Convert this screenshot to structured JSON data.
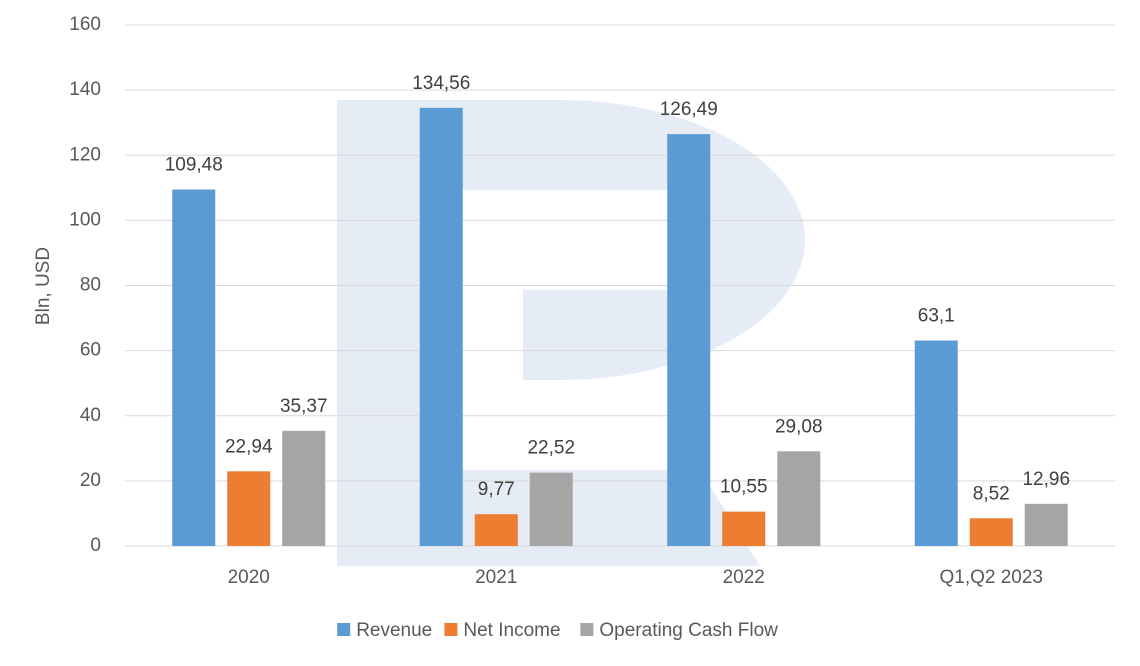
{
  "chart_data": {
    "type": "bar",
    "y_label": "Bln, USD",
    "categories": [
      "2020",
      "2021",
      "2022",
      "Q1,Q2 2023"
    ],
    "series": [
      {
        "name": "Revenue",
        "color": "#5b9bd5",
        "values": [
          109.48,
          134.56,
          126.49,
          63.1
        ],
        "value_labels": [
          "109,48",
          "134,56",
          "126,49",
          "63,1"
        ]
      },
      {
        "name": "Net Income",
        "color": "#ed7d31",
        "values": [
          22.94,
          9.77,
          10.55,
          8.52
        ],
        "value_labels": [
          "22,94",
          "9,77",
          "10,55",
          "8,52"
        ]
      },
      {
        "name": "Operating Cash Flow",
        "color": "#a5a5a5",
        "values": [
          35.37,
          22.52,
          29.08,
          12.96
        ],
        "value_labels": [
          "35,37",
          "22,52",
          "29,08",
          "12,96"
        ]
      }
    ],
    "ylim": [
      0,
      160
    ],
    "yticks": [
      0,
      20,
      40,
      60,
      80,
      100,
      120,
      140,
      160
    ],
    "grid": true,
    "legend": "bottom"
  }
}
